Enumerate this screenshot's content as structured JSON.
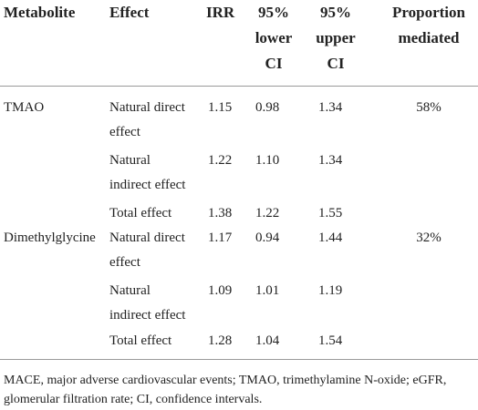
{
  "table": {
    "headers": {
      "metabolite": "Metabolite",
      "effect": "Effect",
      "irr": "IRR",
      "lower": [
        "95%",
        "lower",
        "CI"
      ],
      "upper": [
        "95%",
        "upper",
        "CI"
      ],
      "proportion": [
        "Proportion",
        "mediated"
      ]
    },
    "rows": [
      {
        "metabolite": "TMAO",
        "effect": [
          "Natural direct",
          "effect"
        ],
        "irr": "1.15",
        "lower": "0.98",
        "upper": "1.34",
        "proportion": "58%"
      },
      {
        "metabolite": "",
        "effect": [
          "Natural",
          "indirect effect"
        ],
        "irr": "1.22",
        "lower": "1.10",
        "upper": "1.34",
        "proportion": ""
      },
      {
        "metabolite": "",
        "effect": [
          "Total effect"
        ],
        "irr": "1.38",
        "lower": "1.22",
        "upper": "1.55",
        "proportion": ""
      },
      {
        "metabolite": "Dimethylglycine",
        "effect": [
          "Natural direct",
          "effect"
        ],
        "irr": "1.17",
        "lower": "0.94",
        "upper": "1.44",
        "proportion": "32%"
      },
      {
        "metabolite": "",
        "effect": [
          "Natural",
          "indirect effect"
        ],
        "irr": "1.09",
        "lower": "1.01",
        "upper": "1.19",
        "proportion": ""
      },
      {
        "metabolite": "",
        "effect": [
          "Total effect"
        ],
        "irr": "1.28",
        "lower": "1.04",
        "upper": "1.54",
        "proportion": ""
      }
    ]
  },
  "footnote": "MACE, major adverse cardiovascular events; TMAO, trimethylamine N-oxide; eGFR, glomerular filtration rate; CI, confidence intervals."
}
